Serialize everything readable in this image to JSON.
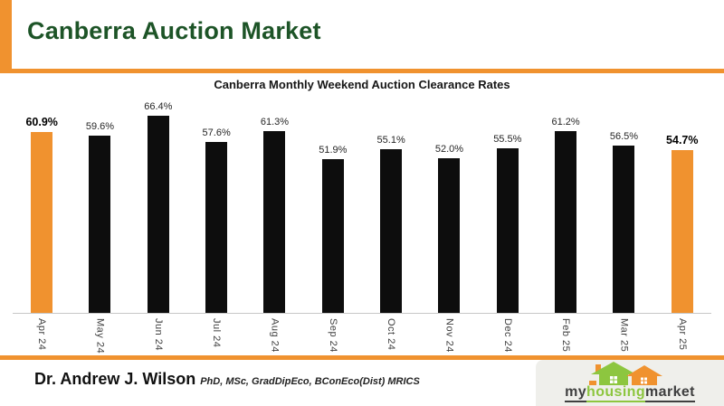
{
  "slide": {
    "title": "Canberra Auction Market"
  },
  "chart_data": {
    "type": "bar",
    "title": "Canberra Monthly Weekend Auction Clearance Rates",
    "categories": [
      "Apr 24",
      "May 24",
      "Jun 24",
      "Jul 24",
      "Aug 24",
      "Sep 24",
      "Oct 24",
      "Nov 24",
      "Dec 24",
      "Feb 25",
      "Mar 25",
      "Apr 25"
    ],
    "values": [
      60.9,
      59.6,
      66.4,
      57.6,
      61.3,
      51.9,
      55.1,
      52.0,
      55.5,
      61.2,
      56.5,
      54.7
    ],
    "value_label_suffix": "%",
    "highlight_indices": [
      0,
      11
    ],
    "bar_color": "#0D0D0D",
    "highlight_color": "#F0922F",
    "xlabel": "",
    "ylabel": "",
    "ylim": [
      0,
      70
    ],
    "grid": false,
    "legend": false,
    "x_tick_rotation": 90
  },
  "footer": {
    "author": "Dr. Andrew J. Wilson",
    "credentials": "PhD, MSc, GradDipEco, BConEco(Dist) MRICS"
  },
  "logo": {
    "word_1": "my",
    "word_2": "housing",
    "word_3": "market",
    "icon": "houses-icon"
  },
  "colors": {
    "accent_orange": "#F0922F",
    "title_green": "#1D5427",
    "bar_black": "#0D0D0D",
    "logo_green": "#8DC63F",
    "logo_dark": "#3F3F3F"
  }
}
